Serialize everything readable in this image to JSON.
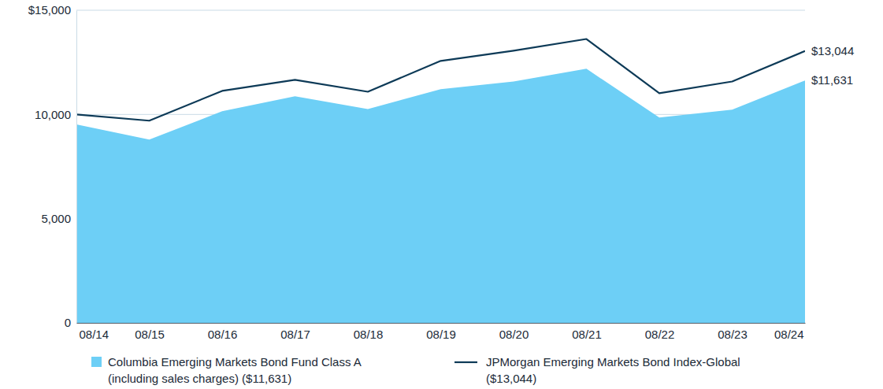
{
  "chart_data": {
    "type": "line",
    "categories": [
      "08/14",
      "08/15",
      "08/16",
      "08/17",
      "08/18",
      "08/19",
      "08/20",
      "08/21",
      "08/22",
      "08/23",
      "08/24"
    ],
    "series": [
      {
        "name": "Columbia Emerging Markets Bond Fund Class A (including sales charges) ($11,631)",
        "type": "area",
        "color": "#6dcff6",
        "values": [
          9525,
          8790,
          10150,
          10870,
          10260,
          11210,
          11580,
          12190,
          9850,
          10230,
          11631
        ],
        "value_labels": [
          null,
          null,
          null,
          null,
          null,
          null,
          null,
          null,
          null,
          null,
          "$11,631"
        ]
      },
      {
        "name": "JPMorgan Emerging Markets Bond Index-Global ($13,044)",
        "type": "line",
        "color": "#0d3a57",
        "values": [
          10000,
          9700,
          11130,
          11660,
          11090,
          12570,
          13060,
          13620,
          11020,
          11580,
          13044
        ],
        "value_labels": [
          null,
          null,
          null,
          null,
          null,
          null,
          null,
          null,
          null,
          null,
          "$13,044"
        ]
      }
    ],
    "ylim": [
      0,
      15000
    ],
    "yticks": [
      0,
      {
        "value": 5000,
        "label": "5,000"
      },
      {
        "value": 10000,
        "label": "10,000"
      },
      {
        "value": 15000,
        "label": "$15,000"
      }
    ],
    "grid": true,
    "legend": "bottom",
    "data_labels": true
  }
}
